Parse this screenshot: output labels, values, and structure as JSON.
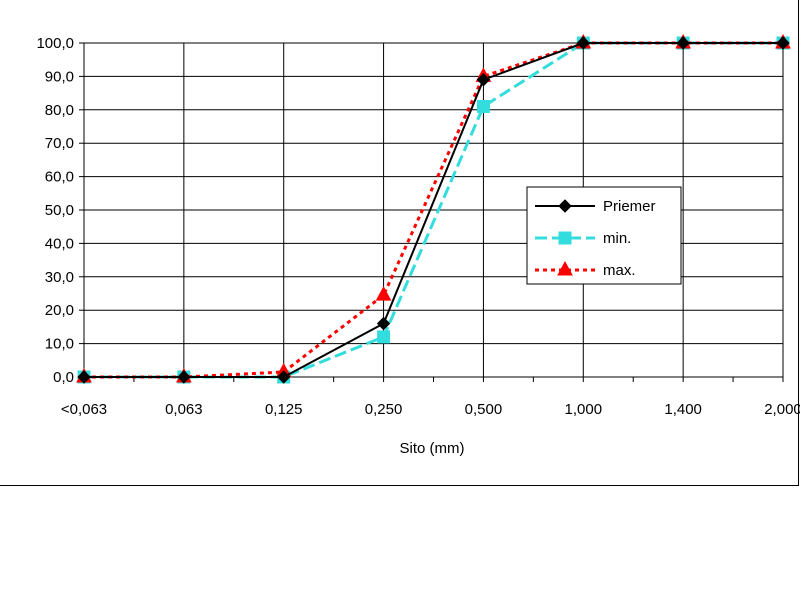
{
  "chart_data": {
    "type": "line",
    "categories": [
      "<0,063",
      "0,063",
      "0,125",
      "0,250",
      "0,500",
      "1,000",
      "1,400",
      "2,000"
    ],
    "series": [
      {
        "name": "Priemer",
        "values": [
          0,
          0,
          0,
          16,
          89,
          100,
          100,
          100
        ],
        "color": "#000000",
        "marker": "diamond",
        "line_style": "solid"
      },
      {
        "name": "min.",
        "values": [
          0,
          0,
          0,
          12,
          81,
          100,
          100,
          100
        ],
        "color": "#33dddd",
        "marker": "square",
        "line_style": "dash"
      },
      {
        "name": "max.",
        "values": [
          0,
          0,
          1.5,
          24.5,
          90,
          100,
          100,
          100
        ],
        "color": "#ff0000",
        "marker": "triangle",
        "line_style": "dot"
      }
    ],
    "xlabel": "Sito (mm)",
    "ylabel": "",
    "ylim": [
      0,
      100
    ],
    "y_ticks": [
      "0,0",
      "10,0",
      "20,0",
      "30,0",
      "40,0",
      "50,0",
      "60,0",
      "70,0",
      "80,0",
      "90,0",
      "100,0"
    ],
    "grid": true,
    "legend_position": "right"
  }
}
